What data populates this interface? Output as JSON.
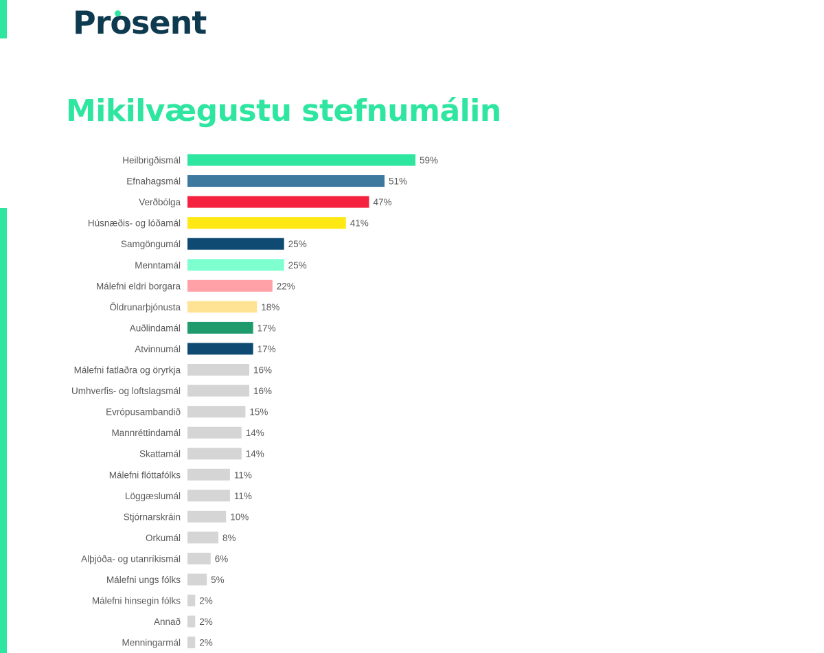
{
  "brand": {
    "logo_text": "Prosent",
    "accent_color": "#2ee6a0",
    "logo_color": "#0e3a4f"
  },
  "chart_data": {
    "type": "bar",
    "orientation": "horizontal",
    "title": "Mikilvægustu stefnumálin",
    "xlabel": "",
    "ylabel": "",
    "value_suffix": "%",
    "xlim": [
      0,
      59
    ],
    "grid": false,
    "categories": [
      "Heilbrigðismál",
      "Efnahagsmál",
      "Verðbólga",
      "Húsnæðis- og lóðamál",
      "Samgöngumál",
      "Menntamál",
      "Málefni eldri borgara",
      "Öldrunarþjónusta",
      "Auðlindamál",
      "Atvinnumál",
      "Málefni fatlaðra og öryrkja",
      "Umhverfis- og loftslagsmál",
      "Evrópusambandið",
      "Mannréttindamál",
      "Skattamál",
      "Málefni flóttafólks",
      "Löggæslumál",
      "Stjórnarskráin",
      "Orkumál",
      "Alþjóða- og utanríkismál",
      "Málefni ungs fólks",
      "Málefni hinsegin fólks",
      "Annað",
      "Menningarmál"
    ],
    "values": [
      59,
      51,
      47,
      41,
      25,
      25,
      22,
      18,
      17,
      17,
      16,
      16,
      15,
      14,
      14,
      11,
      11,
      10,
      8,
      6,
      5,
      2,
      2,
      2
    ],
    "colors": [
      "#2ee6a0",
      "#3d789e",
      "#f5223f",
      "#ffe814",
      "#0f4a72",
      "#7dffd0",
      "#ffa1a6",
      "#ffe395",
      "#1f9a6d",
      "#0f4a72",
      "#d5d5d5",
      "#d5d5d5",
      "#d5d5d5",
      "#d5d5d5",
      "#d5d5d5",
      "#d5d5d5",
      "#d5d5d5",
      "#d5d5d5",
      "#d5d5d5",
      "#d5d5d5",
      "#d5d5d5",
      "#d5d5d5",
      "#d5d5d5",
      "#d5d5d5"
    ]
  }
}
